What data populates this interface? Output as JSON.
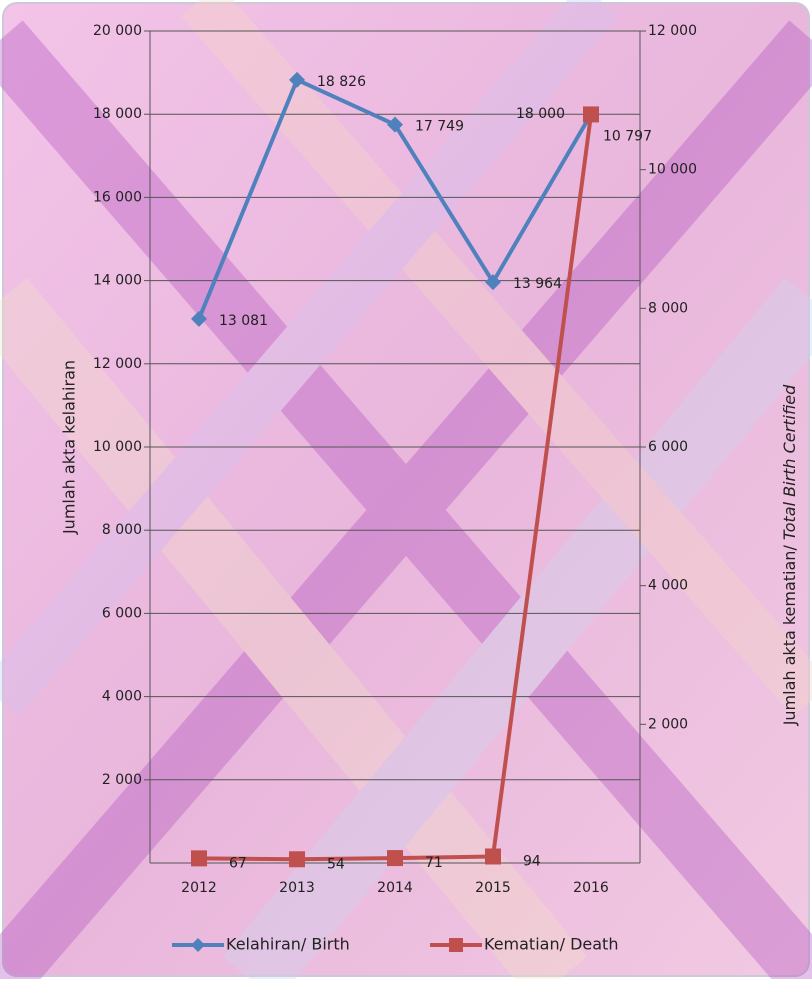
{
  "chart_data": {
    "type": "line",
    "categories": [
      "2012",
      "2013",
      "2014",
      "2015",
      "2016"
    ],
    "ylabel": "Jumlah akta kelahiran",
    "y2label_parts": [
      "Jumlah akta kematian/",
      "Total Birth Certified"
    ],
    "ylim": [
      0,
      20000
    ],
    "yticks": [
      {
        "value": 2000,
        "label": "2 000"
      },
      {
        "value": 4000,
        "label": "4 000"
      },
      {
        "value": 6000,
        "label": "6 000"
      },
      {
        "value": 8000,
        "label": "8 000"
      },
      {
        "value": 10000,
        "label": "10 000"
      },
      {
        "value": 12000,
        "label": "12 000"
      },
      {
        "value": 14000,
        "label": "14 000"
      },
      {
        "value": 16000,
        "label": "16 000"
      },
      {
        "value": 18000,
        "label": "18 000"
      },
      {
        "value": 20000,
        "label": "20 000"
      }
    ],
    "y2lim": [
      0,
      12000
    ],
    "y2ticks": [
      {
        "value": 2000,
        "label": "2 000"
      },
      {
        "value": 4000,
        "label": "4 000"
      },
      {
        "value": 6000,
        "label": "6 000"
      },
      {
        "value": 8000,
        "label": "8 000"
      },
      {
        "value": 10000,
        "label": "10 000"
      },
      {
        "value": 12000,
        "label": "12 000"
      }
    ],
    "grid": true,
    "legend": "bottom",
    "series": [
      {
        "name": "Kelahiran/ Birth",
        "color": "#4f81bd",
        "marker": "diamond",
        "axis": "y",
        "values": [
          13081,
          18826,
          17749,
          13964,
          18000
        ],
        "value_labels": [
          "13 081",
          "18 826",
          "17 749",
          "13 964",
          "18 000"
        ]
      },
      {
        "name": "Kematian/ Death",
        "color": "#c0504d",
        "marker": "square",
        "axis": "y2",
        "values": [
          67,
          54,
          71,
          94,
          10797
        ],
        "value_labels": [
          "67",
          "54",
          "71",
          "94",
          "10 797"
        ]
      }
    ]
  }
}
